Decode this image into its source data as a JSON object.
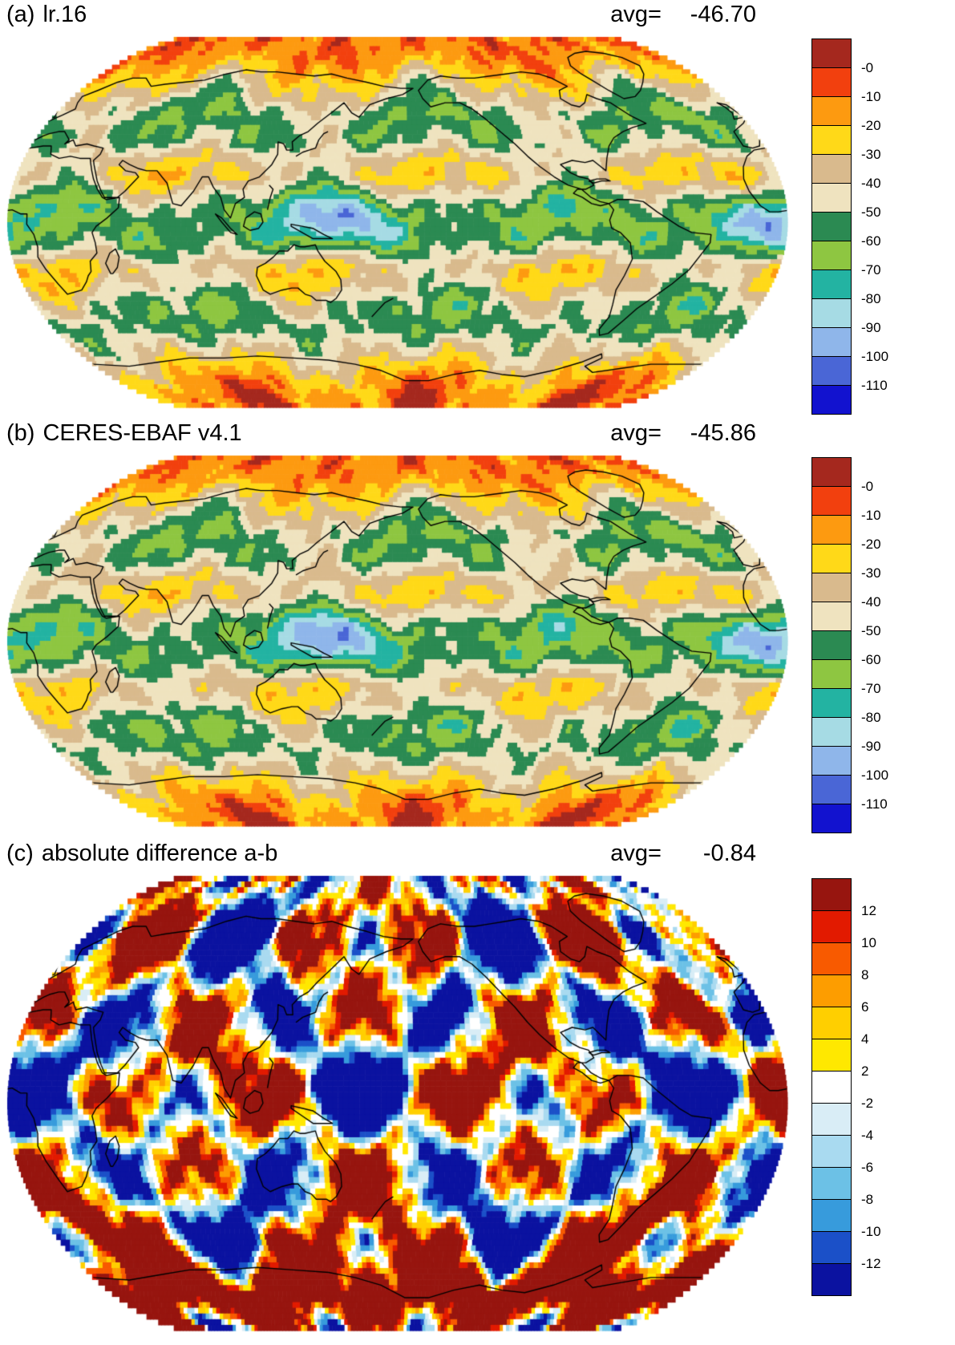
{
  "figure": {
    "panels": [
      {
        "label": "(a)",
        "title": "lr.16",
        "avg_label": "avg=",
        "avg_value": "-46.70"
      },
      {
        "label": "(b)",
        "title": "CERES-EBAF v4.1",
        "avg_label": "avg=",
        "avg_value": "-45.86"
      },
      {
        "label": "(c)",
        "title": "absolute difference a-b",
        "avg_label": "avg=",
        "avg_value": "-0.84"
      }
    ]
  },
  "chart_data": [
    {
      "type": "heatmap",
      "panel": "a",
      "title": "lr.16",
      "projection": "robinson-global",
      "x": "longitude",
      "y": "latitude",
      "global_mean": -46.7,
      "value_range": [
        -110,
        0
      ],
      "colorbar": {
        "orientation": "vertical",
        "position": "right",
        "tick_labels": [
          "-0",
          "-10",
          "-20",
          "-30",
          "-40",
          "-50",
          "-60",
          "-70",
          "-80",
          "-90",
          "-100",
          "-110"
        ],
        "colors": [
          "#a5281e",
          "#f2400e",
          "#fd9a10",
          "#ffd918",
          "#d9ba8d",
          "#efe3bf",
          "#2b8a52",
          "#8ec641",
          "#23b3a2",
          "#a6dbe4",
          "#8fb6ea",
          "#4a66d6",
          "#1212cf"
        ]
      }
    },
    {
      "type": "heatmap",
      "panel": "b",
      "title": "CERES-EBAF v4.1",
      "projection": "robinson-global",
      "x": "longitude",
      "y": "latitude",
      "global_mean": -45.86,
      "value_range": [
        -110,
        0
      ],
      "colorbar": {
        "orientation": "vertical",
        "position": "right",
        "tick_labels": [
          "-0",
          "-10",
          "-20",
          "-30",
          "-40",
          "-50",
          "-60",
          "-70",
          "-80",
          "-90",
          "-100",
          "-110"
        ],
        "colors": [
          "#a5281e",
          "#f2400e",
          "#fd9a10",
          "#ffd918",
          "#d9ba8d",
          "#efe3bf",
          "#2b8a52",
          "#8ec641",
          "#23b3a2",
          "#a6dbe4",
          "#8fb6ea",
          "#4a66d6",
          "#1212cf"
        ]
      }
    },
    {
      "type": "heatmap",
      "panel": "c",
      "title": "absolute difference a-b",
      "projection": "robinson-global",
      "x": "longitude",
      "y": "latitude",
      "global_mean": -0.84,
      "value_range": [
        -12,
        12
      ],
      "colorbar": {
        "orientation": "vertical",
        "position": "right",
        "tick_labels": [
          "12",
          "10",
          "8",
          "6",
          "4",
          "2",
          "-2",
          "-4",
          "-6",
          "-8",
          "-10",
          "-12"
        ],
        "colors": [
          "#97150f",
          "#e21a00",
          "#f85a00",
          "#fd9d00",
          "#ffcf00",
          "#ffe800",
          "#ffffff",
          "#d9edf6",
          "#a9daf0",
          "#6cc1e6",
          "#379bdc",
          "#1b50c8",
          "#0b12a0"
        ]
      }
    }
  ]
}
